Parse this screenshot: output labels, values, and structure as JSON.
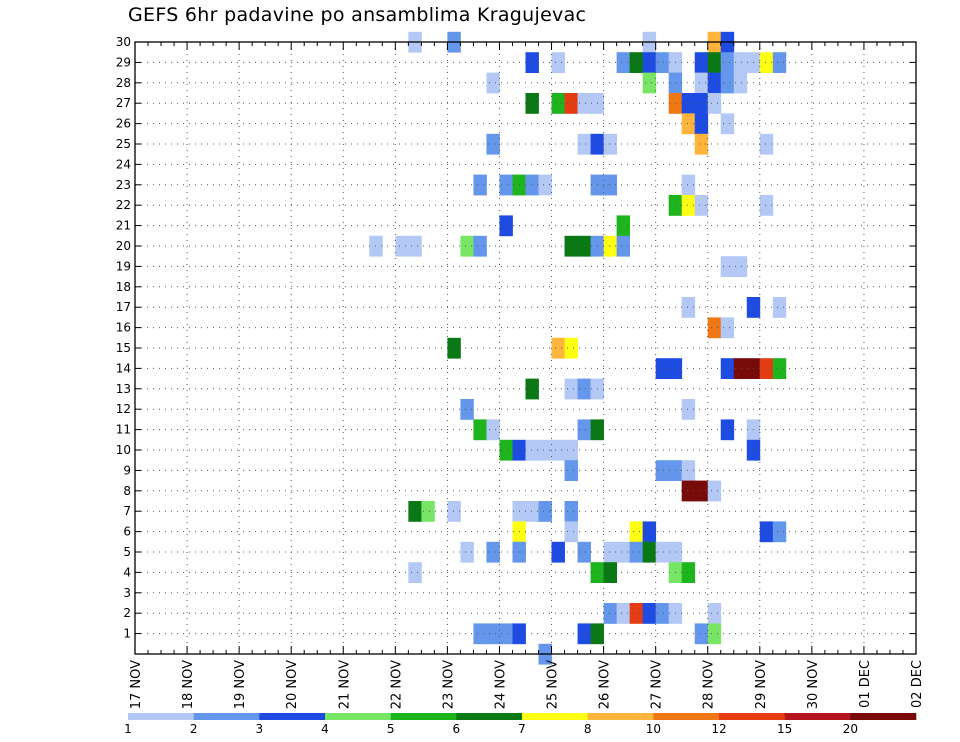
{
  "title": "GEFS 6hr padavine po ansamblima Kragujevac",
  "chart_data": {
    "type": "heatmap",
    "title": "GEFS 6hr padavine po ansamblima Kragujevac",
    "xlabel": "",
    "ylabel": "",
    "x_tick_labels": [
      "17 NOV",
      "18 NOV",
      "19 NOV",
      "20 NOV",
      "21 NOV",
      "22 NOV",
      "23 NOV",
      "24 NOV",
      "25 NOV",
      "26 NOV",
      "27 NOV",
      "28 NOV",
      "29 NOV",
      "30 NOV",
      "01 DEC",
      "02 DEC"
    ],
    "x_range_days": [
      0,
      15
    ],
    "y_range": [
      0,
      30
    ],
    "y_ticks": [
      1,
      2,
      3,
      4,
      5,
      6,
      7,
      8,
      9,
      10,
      11,
      12,
      13,
      14,
      15,
      16,
      17,
      18,
      19,
      20,
      21,
      22,
      23,
      24,
      25,
      26,
      27,
      28,
      29,
      30
    ],
    "time_step_hours": 6,
    "grid": true,
    "legend_position": "bottom",
    "color_levels": [
      {
        "label": "1",
        "color": "#b4c8f5"
      },
      {
        "label": "2",
        "color": "#6496eb"
      },
      {
        "label": "3",
        "color": "#1e4be1"
      },
      {
        "label": "4",
        "color": "#78e664"
      },
      {
        "label": "5",
        "color": "#1eb41e"
      },
      {
        "label": "6",
        "color": "#0a7814"
      },
      {
        "label": "7",
        "color": "#ffff14"
      },
      {
        "label": "8",
        "color": "#ffb43c"
      },
      {
        "label": "10",
        "color": "#f07814"
      },
      {
        "label": "12",
        "color": "#e63c14"
      },
      {
        "label": "15",
        "color": "#b4141e"
      },
      {
        "label": "20",
        "color": "#780a0a"
      }
    ],
    "cells_format": "[member, step_index_from_17_NOV_00Z, color_level_index]",
    "cells": [
      [
        30,
        24,
        1
      ],
      [
        30,
        21,
        0
      ],
      [
        30,
        39,
        0
      ],
      [
        30,
        44,
        7
      ],
      [
        30,
        45,
        2
      ],
      [
        29,
        30,
        2
      ],
      [
        29,
        32,
        0
      ],
      [
        29,
        37,
        1
      ],
      [
        29,
        38,
        5
      ],
      [
        29,
        39,
        2
      ],
      [
        29,
        40,
        1
      ],
      [
        29,
        41,
        0
      ],
      [
        29,
        43,
        2
      ],
      [
        29,
        44,
        5
      ],
      [
        29,
        45,
        1
      ],
      [
        29,
        46,
        0
      ],
      [
        29,
        47,
        0
      ],
      [
        29,
        48,
        6
      ],
      [
        29,
        49,
        1
      ],
      [
        28,
        27,
        0
      ],
      [
        28,
        39,
        3
      ],
      [
        28,
        41,
        1
      ],
      [
        28,
        43,
        0
      ],
      [
        28,
        44,
        2
      ],
      [
        28,
        45,
        1
      ],
      [
        28,
        46,
        0
      ],
      [
        27,
        30,
        5
      ],
      [
        27,
        32,
        4
      ],
      [
        27,
        33,
        9
      ],
      [
        27,
        34,
        0
      ],
      [
        27,
        35,
        0
      ],
      [
        27,
        41,
        8
      ],
      [
        27,
        42,
        2
      ],
      [
        27,
        43,
        2
      ],
      [
        27,
        44,
        0
      ],
      [
        26,
        42,
        7
      ],
      [
        26,
        43,
        2
      ],
      [
        26,
        45,
        0
      ],
      [
        25,
        27,
        1
      ],
      [
        25,
        34,
        0
      ],
      [
        25,
        35,
        2
      ],
      [
        25,
        36,
        0
      ],
      [
        25,
        43,
        7
      ],
      [
        25,
        48,
        0
      ],
      [
        23,
        26,
        1
      ],
      [
        23,
        28,
        1
      ],
      [
        23,
        29,
        4
      ],
      [
        23,
        30,
        1
      ],
      [
        23,
        31,
        0
      ],
      [
        23,
        35,
        1
      ],
      [
        23,
        36,
        1
      ],
      [
        23,
        42,
        0
      ],
      [
        22,
        41,
        4
      ],
      [
        22,
        42,
        6
      ],
      [
        22,
        43,
        0
      ],
      [
        22,
        48,
        0
      ],
      [
        21,
        28,
        2
      ],
      [
        21,
        37,
        4
      ],
      [
        20,
        18,
        0
      ],
      [
        20,
        20,
        0
      ],
      [
        20,
        21,
        0
      ],
      [
        20,
        25,
        3
      ],
      [
        20,
        26,
        1
      ],
      [
        20,
        33,
        5
      ],
      [
        20,
        34,
        5
      ],
      [
        20,
        35,
        1
      ],
      [
        20,
        36,
        6
      ],
      [
        20,
        37,
        1
      ],
      [
        19,
        45,
        0
      ],
      [
        19,
        46,
        0
      ],
      [
        17,
        42,
        0
      ],
      [
        17,
        47,
        2
      ],
      [
        17,
        49,
        0
      ],
      [
        16,
        44,
        8
      ],
      [
        16,
        45,
        0
      ],
      [
        15,
        24,
        5
      ],
      [
        15,
        32,
        7
      ],
      [
        15,
        33,
        6
      ],
      [
        14,
        40,
        2
      ],
      [
        14,
        41,
        2
      ],
      [
        14,
        45,
        2
      ],
      [
        14,
        46,
        11
      ],
      [
        14,
        47,
        11
      ],
      [
        14,
        48,
        9
      ],
      [
        14,
        49,
        4
      ],
      [
        13,
        30,
        5
      ],
      [
        13,
        33,
        0
      ],
      [
        13,
        34,
        1
      ],
      [
        13,
        35,
        0
      ],
      [
        12,
        25,
        1
      ],
      [
        12,
        42,
        0
      ],
      [
        11,
        26,
        4
      ],
      [
        11,
        27,
        0
      ],
      [
        11,
        34,
        1
      ],
      [
        11,
        35,
        5
      ],
      [
        11,
        45,
        2
      ],
      [
        11,
        47,
        0
      ],
      [
        10,
        28,
        4
      ],
      [
        10,
        29,
        2
      ],
      [
        10,
        30,
        0
      ],
      [
        10,
        31,
        0
      ],
      [
        10,
        32,
        0
      ],
      [
        10,
        33,
        0
      ],
      [
        10,
        47,
        2
      ],
      [
        9,
        33,
        1
      ],
      [
        9,
        40,
        1
      ],
      [
        9,
        41,
        1
      ],
      [
        9,
        42,
        0
      ],
      [
        8,
        42,
        11
      ],
      [
        8,
        43,
        11
      ],
      [
        8,
        44,
        0
      ],
      [
        7,
        21,
        5
      ],
      [
        7,
        22,
        3
      ],
      [
        7,
        24,
        0
      ],
      [
        7,
        29,
        0
      ],
      [
        7,
        30,
        0
      ],
      [
        7,
        31,
        1
      ],
      [
        7,
        33,
        1
      ],
      [
        6,
        29,
        6
      ],
      [
        6,
        33,
        0
      ],
      [
        6,
        38,
        6
      ],
      [
        6,
        39,
        2
      ],
      [
        6,
        48,
        2
      ],
      [
        6,
        49,
        1
      ],
      [
        5,
        25,
        0
      ],
      [
        5,
        27,
        1
      ],
      [
        5,
        29,
        1
      ],
      [
        5,
        32,
        2
      ],
      [
        5,
        34,
        1
      ],
      [
        5,
        36,
        0
      ],
      [
        5,
        37,
        0
      ],
      [
        5,
        38,
        1
      ],
      [
        5,
        39,
        5
      ],
      [
        5,
        40,
        0
      ],
      [
        5,
        41,
        0
      ],
      [
        4,
        21,
        0
      ],
      [
        4,
        35,
        4
      ],
      [
        4,
        36,
        5
      ],
      [
        4,
        41,
        3
      ],
      [
        4,
        42,
        4
      ],
      [
        2,
        36,
        1
      ],
      [
        2,
        37,
        0
      ],
      [
        2,
        38,
        9
      ],
      [
        2,
        39,
        2
      ],
      [
        2,
        40,
        1
      ],
      [
        2,
        41,
        0
      ],
      [
        2,
        44,
        0
      ],
      [
        1,
        26,
        1
      ],
      [
        1,
        27,
        1
      ],
      [
        1,
        28,
        1
      ],
      [
        1,
        29,
        2
      ],
      [
        1,
        34,
        2
      ],
      [
        1,
        35,
        5
      ],
      [
        1,
        43,
        1
      ],
      [
        1,
        44,
        3
      ],
      [
        0,
        31,
        1
      ]
    ]
  }
}
